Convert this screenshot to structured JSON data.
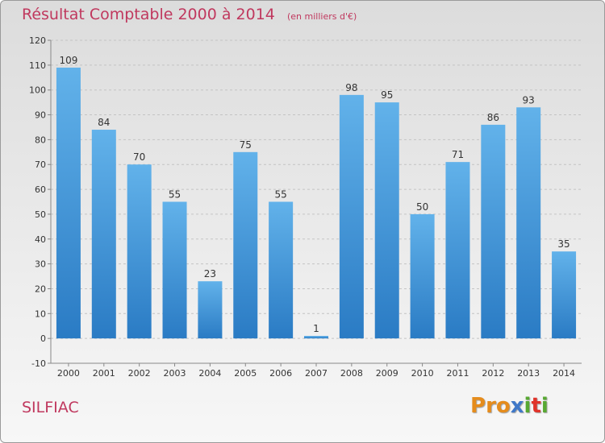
{
  "header": {
    "title": "Résultat Comptable 2000 à 2014",
    "unit": "(en milliers d'€)"
  },
  "commune": "SILFIAC",
  "logo": {
    "letters": [
      "P",
      "r",
      "o",
      "x",
      "i",
      "t",
      "i"
    ],
    "colors": [
      "#e58c1c",
      "#e58c1c",
      "#e58c1c",
      "#3f78c8",
      "#58a832",
      "#e0332a",
      "#58a832"
    ]
  },
  "colors": {
    "bar_top": "#62b2ea",
    "bar_bottom": "#2a7bc4",
    "title": "#c0385e"
  },
  "chart_data": {
    "type": "bar",
    "categories": [
      "2000",
      "2001",
      "2002",
      "2003",
      "2004",
      "2005",
      "2006",
      "2007",
      "2008",
      "2009",
      "2010",
      "2011",
      "2012",
      "2013",
      "2014"
    ],
    "values": [
      109,
      84,
      70,
      55,
      23,
      75,
      55,
      1,
      98,
      95,
      50,
      71,
      86,
      93,
      35
    ],
    "ylim": [
      -10,
      120
    ],
    "yticks": [
      -10,
      0,
      10,
      20,
      30,
      40,
      50,
      60,
      70,
      80,
      90,
      100,
      110,
      120
    ],
    "grid": true
  }
}
